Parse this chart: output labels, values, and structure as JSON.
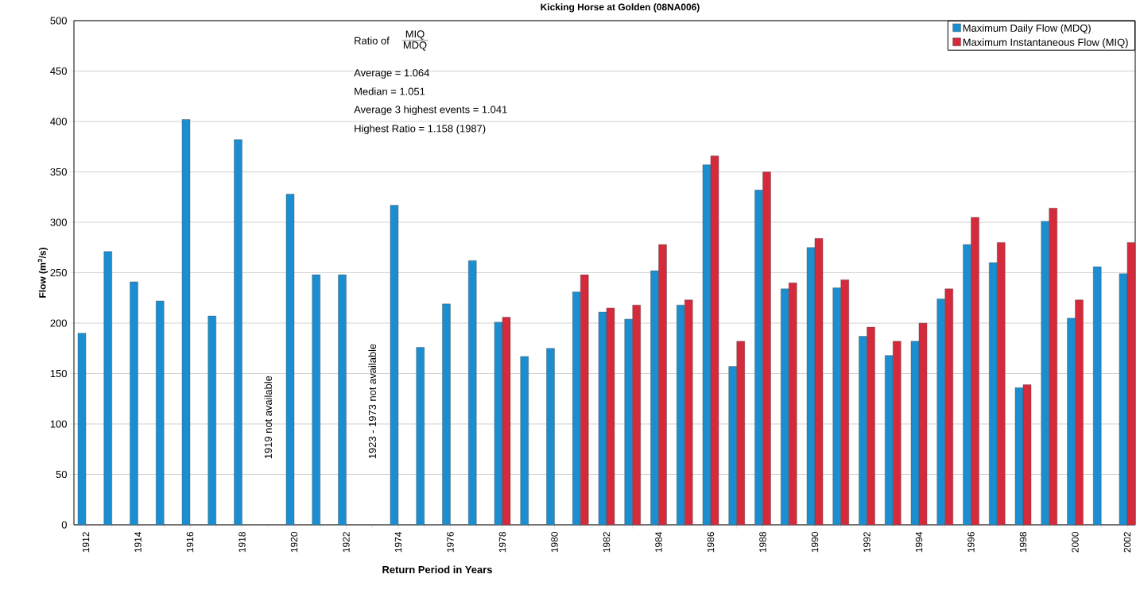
{
  "chart_data": {
    "type": "bar",
    "title": "Kicking Horse at Golden (08NA006)",
    "xlabel": "Return Period in Years",
    "ylabel": "Flow (m$^{3}$/s)",
    "categories": [
      "1912",
      null,
      "1914",
      null,
      "1916",
      null,
      "1918",
      null,
      "1920",
      null,
      "1922",
      null,
      "1974",
      null,
      "1976",
      null,
      "1978",
      null,
      "1980",
      null,
      "1982",
      null,
      "1984",
      null,
      "1986",
      null,
      "1988",
      null,
      "1990",
      null,
      "1992",
      null,
      "1994",
      null,
      "1996",
      null,
      "1998",
      null,
      "2000",
      null,
      "2002"
    ],
    "series": [
      {
        "name": "Maximum Daily Flow (MDQ)",
        "color": "#1a8ed0",
        "values": [
          190,
          271,
          241,
          222,
          402,
          207,
          382,
          null,
          328,
          248,
          248,
          null,
          317,
          176,
          219,
          262,
          201,
          167,
          175,
          231,
          211,
          204,
          252,
          218,
          357,
          157,
          332,
          234,
          275,
          235,
          187,
          168,
          182,
          224,
          278,
          260,
          136,
          301,
          205,
          256,
          249
        ]
      },
      {
        "name": "Maximum Instantaneous Flow (MIQ)",
        "color": "#d42a3c",
        "values": [
          null,
          null,
          null,
          null,
          null,
          null,
          null,
          null,
          null,
          null,
          null,
          null,
          null,
          null,
          null,
          null,
          206,
          null,
          null,
          248,
          215,
          218,
          278,
          223,
          366,
          182,
          350,
          240,
          284,
          243,
          196,
          182,
          200,
          234,
          305,
          280,
          139,
          314,
          223,
          null,
          280
        ]
      }
    ],
    "ylim": [
      0,
      500
    ],
    "yticks": [
      0,
      50,
      100,
      150,
      200,
      250,
      300,
      350,
      400,
      450,
      500
    ],
    "grid": "y",
    "legend": "top right",
    "annotations": [
      "Ratio of",
      "MIQ",
      "MDQ",
      "Average = 1.064",
      "Median = 1.051",
      "Average 3 highest events = 1.041",
      "Highest Ratio = 1.158 (1987)",
      "1919 not available",
      "1923 - 1973 not available"
    ]
  }
}
